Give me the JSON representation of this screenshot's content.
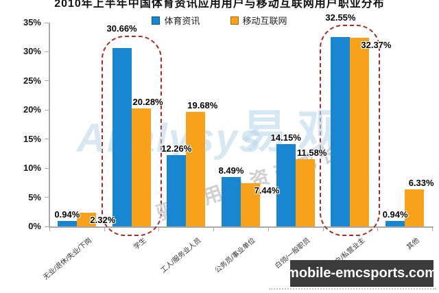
{
  "title": "2010年上半年中国体育资讯应用用户与移动互联网用户职业分布",
  "legend": [
    {
      "label": "体育资讯",
      "color": "#1886d1"
    },
    {
      "label": "移动互联网",
      "color": "#f9a11b"
    }
  ],
  "chart_data": {
    "type": "bar",
    "title": "2010年上半年中国体育资讯应用用户与移动互联网用户职业分布",
    "categories": [
      "无业/退休/失业/下岗",
      "学生",
      "工人/服务业人员",
      "公务员/事业单位",
      "白领/一般职员",
      "管理者/个体户/私营业主",
      "其他"
    ],
    "series": [
      {
        "name": "体育资讯",
        "color": "#1886d1",
        "values": [
          0.94,
          30.66,
          12.26,
          8.49,
          14.15,
          32.55,
          0.94
        ]
      },
      {
        "name": "移动互联网",
        "color": "#f9a11b",
        "values": [
          2.32,
          20.28,
          19.68,
          7.44,
          11.58,
          32.37,
          6.33
        ]
      }
    ],
    "value_suffix": "%",
    "y_axis": {
      "min": 0,
      "max": 35,
      "step": 5,
      "unit": "%"
    },
    "grid": false,
    "legend_position": "top",
    "highlighted_categories": [
      "学生",
      "管理者/个体户/私营业主"
    ],
    "highlight_color": "#a82a21"
  },
  "watermark": {
    "brand_latin": "Analysys",
    "brand_cn": "易观",
    "slogan": "驱动用户资产成长"
  },
  "banner": {
    "text": "mobile-emcsports.com"
  }
}
